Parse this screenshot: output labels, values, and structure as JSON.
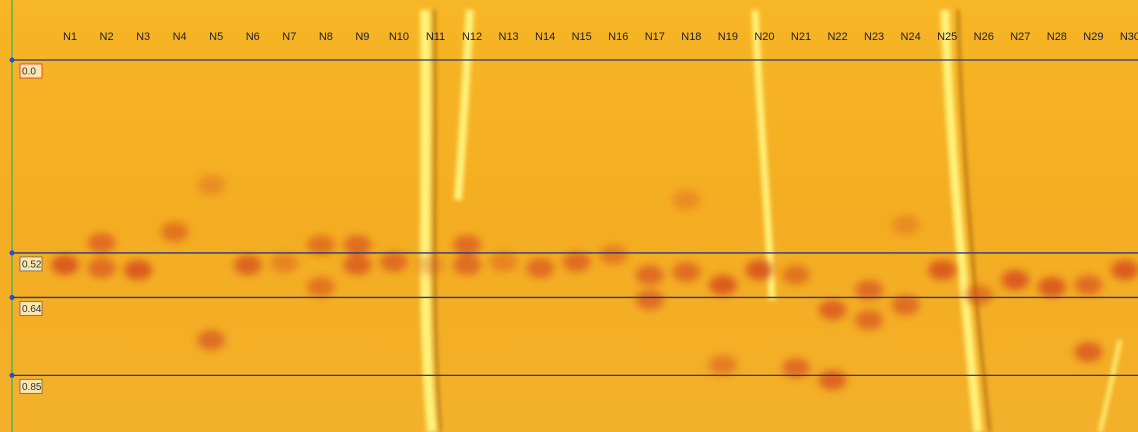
{
  "lanes": [
    "N1",
    "N2",
    "N3",
    "N4",
    "N5",
    "N6",
    "N7",
    "N8",
    "N9",
    "N10",
    "N11",
    "N12",
    "N13",
    "N14",
    "N15",
    "N16",
    "N17",
    "N18",
    "N19",
    "N20",
    "N21",
    "N22",
    "N23",
    "N24",
    "N25",
    "N26",
    "N27",
    "N28",
    "N29",
    "N30"
  ],
  "rf_lines": [
    {
      "value": 0,
      "label": "0.0"
    },
    0.52,
    0.64,
    0.85
  ]
}
